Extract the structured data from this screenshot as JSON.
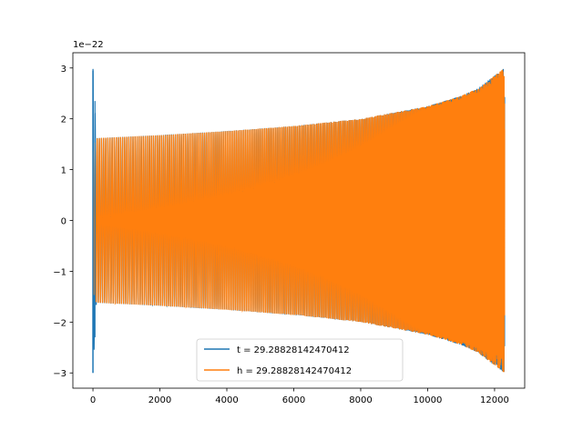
{
  "chart_data": {
    "type": "line",
    "title": "",
    "xlabel": "",
    "ylabel": "",
    "offset_label": "1e−22",
    "xlim": [
      -600,
      12900
    ],
    "ylim": [
      -3.3,
      3.3
    ],
    "xticks": [
      0,
      2000,
      4000,
      6000,
      8000,
      10000,
      12000
    ],
    "xtick_labels": [
      "0",
      "2000",
      "4000",
      "6000",
      "8000",
      "10000",
      "12000"
    ],
    "yticks": [
      -3,
      -2,
      -1,
      0,
      1,
      2,
      3
    ],
    "ytick_labels": [
      "−3",
      "−2",
      "−1",
      "0",
      "1",
      "2",
      "3"
    ],
    "grid": false,
    "legend_position": "lower center",
    "series": [
      {
        "name": "t = 29.28828142470412",
        "color": "#1f77b4",
        "envelope": {
          "x": [
            0,
            100,
            2000,
            4000,
            6000,
            8000,
            10000,
            11000,
            11500,
            12000,
            12300
          ],
          "amp": [
            3.0,
            1.62,
            1.68,
            1.76,
            1.86,
            2.0,
            2.25,
            2.45,
            2.6,
            2.85,
            3.0
          ]
        }
      },
      {
        "name": "h = 29.28828142470412",
        "color": "#ff7f0e",
        "envelope": {
          "x": [
            0,
            100,
            2000,
            4000,
            6000,
            8000,
            10000,
            11000,
            11500,
            12000,
            12300
          ],
          "amp": [
            1.4,
            1.62,
            1.68,
            1.76,
            1.86,
            2.0,
            2.25,
            2.45,
            2.6,
            2.85,
            3.0
          ]
        }
      }
    ]
  }
}
